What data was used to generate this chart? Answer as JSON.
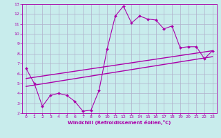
{
  "xlabel": "Windchill (Refroidissement éolien,°C)",
  "ylabel": "",
  "xlim": [
    -0.5,
    23.5
  ],
  "ylim": [
    2,
    13
  ],
  "xticks": [
    0,
    1,
    2,
    3,
    4,
    5,
    6,
    7,
    8,
    9,
    10,
    11,
    12,
    13,
    14,
    15,
    16,
    17,
    18,
    19,
    20,
    21,
    22,
    23
  ],
  "yticks": [
    2,
    3,
    4,
    5,
    6,
    7,
    8,
    9,
    10,
    11,
    12,
    13
  ],
  "bg_color": "#c8ecec",
  "line_color": "#aa00aa",
  "grid_color": "#b0b0cc",
  "line1_x": [
    0,
    1,
    2,
    3,
    4,
    5,
    6,
    7,
    8,
    9,
    10,
    11,
    12,
    13,
    14,
    15,
    16,
    17,
    18,
    19,
    20,
    21,
    22,
    23
  ],
  "line1_y": [
    6.5,
    5.0,
    2.7,
    3.8,
    4.0,
    3.8,
    3.2,
    2.2,
    2.3,
    4.3,
    8.5,
    11.8,
    12.8,
    11.1,
    11.8,
    11.5,
    11.4,
    10.5,
    10.8,
    8.6,
    8.7,
    8.7,
    7.5,
    8.3
  ],
  "line2_x": [
    0,
    23
  ],
  "line2_y": [
    5.5,
    8.3
  ],
  "line3_x": [
    0,
    23
  ],
  "line3_y": [
    4.7,
    7.7
  ]
}
